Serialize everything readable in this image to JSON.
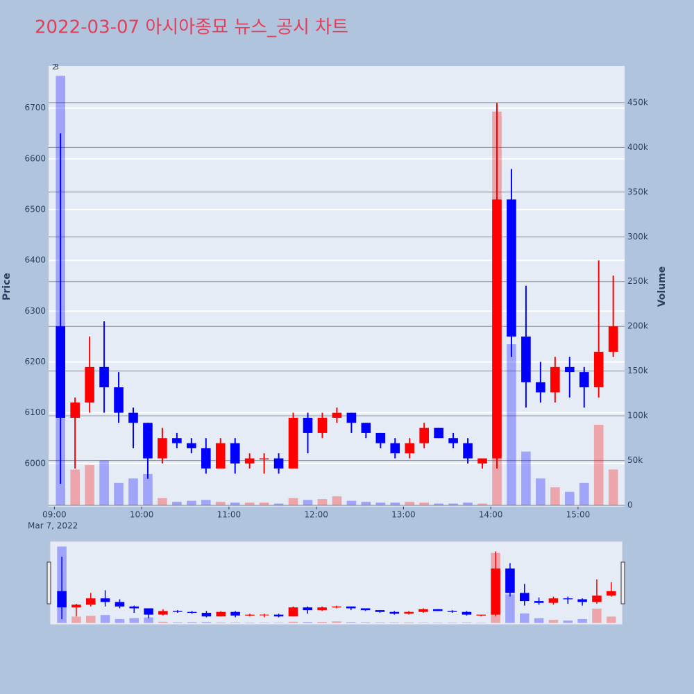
{
  "chart_data": {
    "type": "candlestick",
    "title": "2022-03-07 아시아종묘 뉴스_공시 차트",
    "y_label": "Price",
    "y2_label": "Volume",
    "annotations": [
      "2",
      "3"
    ],
    "x_sublabel": "Mar 7, 2022",
    "x": [
      "2022-03-07 09:00",
      "2022-03-07 09:10",
      "2022-03-07 09:20",
      "2022-03-07 09:30",
      "2022-03-07 09:40",
      "2022-03-07 09:50",
      "2022-03-07 10:00",
      "2022-03-07 10:10",
      "2022-03-07 10:20",
      "2022-03-07 10:30",
      "2022-03-07 10:40",
      "2022-03-07 10:50",
      "2022-03-07 11:00",
      "2022-03-07 11:10",
      "2022-03-07 11:20",
      "2022-03-07 11:30",
      "2022-03-07 11:40",
      "2022-03-07 11:50",
      "2022-03-07 12:00",
      "2022-03-07 12:10",
      "2022-03-07 12:20",
      "2022-03-07 12:30",
      "2022-03-07 12:40",
      "2022-03-07 12:50",
      "2022-03-07 13:00",
      "2022-03-07 13:10",
      "2022-03-07 13:20",
      "2022-03-07 13:30",
      "2022-03-07 13:40",
      "2022-03-07 13:50",
      "2022-03-07 14:00",
      "2022-03-07 14:10",
      "2022-03-07 14:20",
      "2022-03-07 14:30",
      "2022-03-07 14:40",
      "2022-03-07 14:50",
      "2022-03-07 15:00",
      "2022-03-07 15:10",
      "2022-03-07 15:20"
    ],
    "open": [
      6270,
      6090,
      6120,
      6190,
      6150,
      6100,
      6080,
      6010,
      6050,
      6040,
      6030,
      5990,
      6040,
      6000,
      6010,
      6010,
      5990,
      6090,
      6060,
      6090,
      6100,
      6080,
      6060,
      6040,
      6020,
      6040,
      6070,
      6050,
      6040,
      6000,
      6010,
      6520,
      6250,
      6160,
      6140,
      6190,
      6180,
      6150,
      6220
    ],
    "high": [
      6650,
      6130,
      6250,
      6280,
      6180,
      6110,
      6080,
      6070,
      6060,
      6050,
      6050,
      6050,
      6050,
      6020,
      6020,
      6020,
      6100,
      6100,
      6100,
      6110,
      6100,
      6080,
      6060,
      6050,
      6050,
      6080,
      6070,
      6060,
      6050,
      6010,
      6710,
      6580,
      6350,
      6200,
      6210,
      6210,
      6190,
      6400,
      6370
    ],
    "low": [
      5960,
      5990,
      6100,
      6100,
      6080,
      6030,
      5970,
      6000,
      6030,
      6020,
      5980,
      5990,
      5980,
      5990,
      5980,
      5980,
      5990,
      6020,
      6050,
      6080,
      6060,
      6050,
      6030,
      6010,
      6010,
      6030,
      6050,
      6030,
      6000,
      5990,
      5990,
      6210,
      6110,
      6120,
      6120,
      6130,
      6110,
      6130,
      6210
    ],
    "close": [
      6090,
      6120,
      6190,
      6150,
      6100,
      6080,
      6010,
      6050,
      6040,
      6030,
      5990,
      6040,
      6000,
      6010,
      6010,
      5990,
      6090,
      6060,
      6090,
      6100,
      6080,
      6060,
      6040,
      6020,
      6040,
      6070,
      6050,
      6040,
      6010,
      6010,
      6520,
      6250,
      6160,
      6140,
      6190,
      6180,
      6150,
      6220,
      6270
    ],
    "volume": [
      480000,
      40000,
      45000,
      50000,
      25000,
      30000,
      35000,
      8000,
      4000,
      5000,
      6000,
      4000,
      3000,
      3000,
      3000,
      2000,
      8000,
      6000,
      7000,
      10000,
      5000,
      4000,
      3000,
      3000,
      4000,
      3000,
      2000,
      2000,
      3000,
      2000,
      440000,
      180000,
      60000,
      30000,
      20000,
      15000,
      25000,
      90000,
      40000
    ],
    "increasing_color": "#ff0000",
    "decreasing_color": "#0000ff",
    "xlim": [
      "2022-03-07 08:56",
      "2022-03-07 15:32"
    ],
    "xticks": [
      {
        "value": "2022-03-07 09:00",
        "label": "09:00"
      },
      {
        "value": "2022-03-07 10:00",
        "label": "10:00"
      },
      {
        "value": "2022-03-07 11:00",
        "label": "11:00"
      },
      {
        "value": "2022-03-07 12:00",
        "label": "12:00"
      },
      {
        "value": "2022-03-07 13:00",
        "label": "13:00"
      },
      {
        "value": "2022-03-07 14:00",
        "label": "14:00"
      },
      {
        "value": "2022-03-07 15:00",
        "label": "15:00"
      }
    ],
    "ylim": [
      5915,
      6783
    ],
    "yticks": [
      6000,
      6100,
      6200,
      6300,
      6400,
      6500,
      6600,
      6700
    ],
    "y2lim": [
      -1500,
      491000
    ],
    "y2ticks": [
      0,
      {
        "value": 50000,
        "label": "50k"
      },
      {
        "value": 100000,
        "label": "100k"
      },
      {
        "value": 150000,
        "label": "150k"
      },
      {
        "value": 200000,
        "label": "200k"
      },
      {
        "value": 250000,
        "label": "250k"
      },
      {
        "value": 300000,
        "label": "300k"
      },
      {
        "value": 350000,
        "label": "350k"
      },
      {
        "value": 400000,
        "label": "400k"
      },
      {
        "value": 450000,
        "label": "450k"
      }
    ],
    "grid": true
  }
}
